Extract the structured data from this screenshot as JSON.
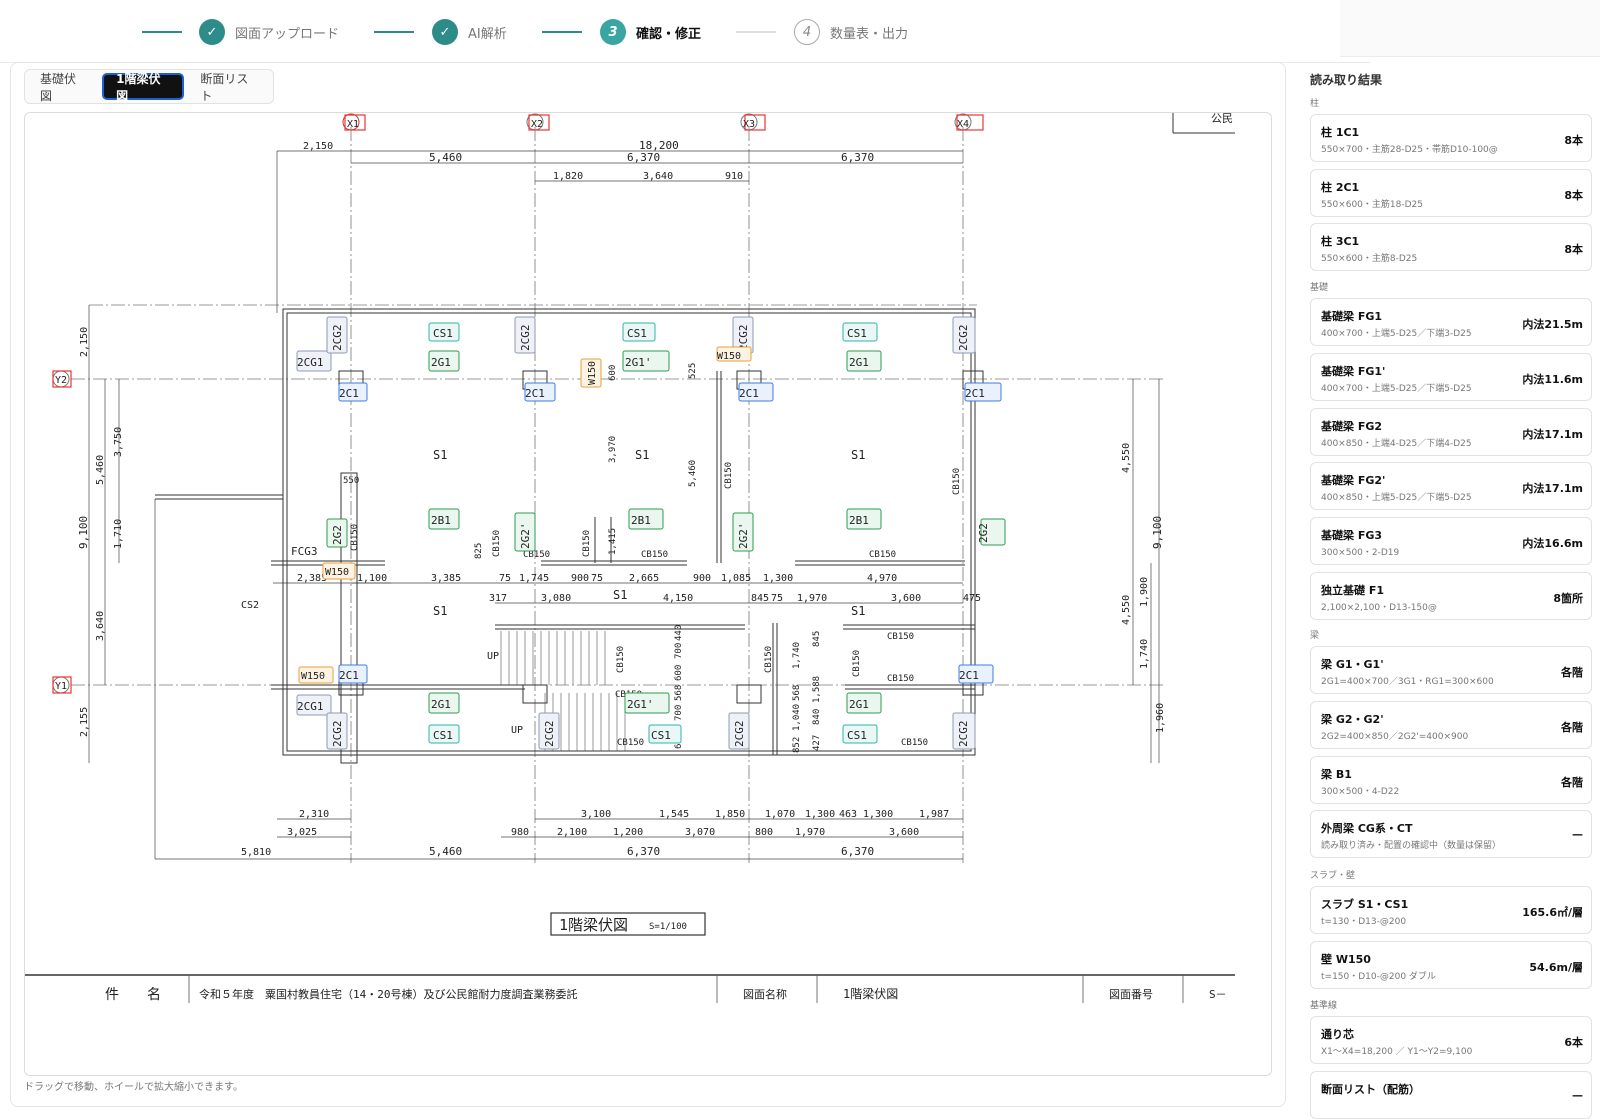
{
  "stepper": {
    "steps": [
      {
        "label": "図面アップロード",
        "mark": "✓"
      },
      {
        "label": "AI解析",
        "mark": "✓"
      },
      {
        "label": "確認・修正",
        "mark": "3"
      },
      {
        "label": "数量表・出力",
        "mark": "4"
      }
    ]
  },
  "tabs": [
    "基礎伏図",
    "1階梁伏図",
    "断面リスト"
  ],
  "hint": "ドラッグで移動、ホイールで拡大縮小できます。",
  "drawing": {
    "grid_x": [
      "X1",
      "X2",
      "X3",
      "X4"
    ],
    "grid_y": [
      "Y2",
      "Y1"
    ],
    "top_right": "公民",
    "dims_top": [
      "2,150",
      "18,200",
      "5,460",
      "6,370",
      "6,370",
      "1,820",
      "3,640",
      "910"
    ],
    "dims_bottom": [
      "2,310",
      "3,025",
      "5,810",
      "5,460",
      "980",
      "2,100",
      "3,100",
      "1,200",
      "1,545",
      "6,370",
      "1,850",
      "3,070",
      "800",
      "1,070",
      "1,970",
      "1,300",
      "463",
      "1,300",
      "3,600",
      "1,987",
      "6,370"
    ],
    "dims_mid": [
      "2,385",
      "1,100",
      "3,385",
      "75",
      "1,745",
      "900",
      "75",
      "2,665",
      "900",
      "1,085",
      "1,300",
      "4,970",
      "317",
      "3,080",
      "4,150",
      "845",
      "75",
      "1,970",
      "3,600",
      "475"
    ],
    "dims_left": [
      "2,150",
      "5,460",
      "3,750",
      "9,100",
      "1,710",
      "3,640",
      "2,155"
    ],
    "dims_right": [
      "4,550",
      "9,100",
      "4,550",
      "1,900",
      "1,740",
      "1,960"
    ],
    "labels": [
      "S1",
      "S1",
      "S1",
      "S1",
      "S1",
      "S1",
      "FCG3",
      "CS2",
      "UP",
      "UP",
      "550",
      "600",
      "525",
      "825",
      "3,970",
      "5,460",
      "1,415",
      "700",
      "440",
      "568",
      "600",
      "700",
      "692",
      "1,740",
      "1,588",
      "845",
      "568",
      "1,040",
      "852",
      "840",
      "427"
    ],
    "cb150": "CB150",
    "tags_cs1": "CS1",
    "tags_2g1": "2G1",
    "tags_2g1p": "2G1'",
    "tags_2b1": "2B1",
    "tags_2c1": "2C1",
    "tags_2cg1": "2CG1",
    "tags_2cg2": "2CG2",
    "tags_2g2": "2G2",
    "tags_2g2p": "2G2'",
    "tags_w150": "W150",
    "title": "1階梁伏図",
    "scale": "S=1/100",
    "titleblock": {
      "label": "件　　名",
      "project": "令和５年度　粟国村教員住宅（14・20号棟）及び公民館耐力度調査業務委託",
      "name_label": "図面名称",
      "name": "1階梁伏図",
      "num_label": "図面番号",
      "num": "S－"
    }
  },
  "sidebar": {
    "title": "読み取り結果",
    "sections": [
      {
        "heading": "柱",
        "items": [
          {
            "name": "柱 1C1",
            "spec": "550×700・主筋28-D25・帯筋D10-100@",
            "qty": "8本"
          },
          {
            "name": "柱 2C1",
            "spec": "550×600・主筋18-D25",
            "qty": "8本"
          },
          {
            "name": "柱 3C1",
            "spec": "550×600・主筋8-D25",
            "qty": "8本"
          }
        ]
      },
      {
        "heading": "基礎",
        "items": [
          {
            "name": "基礎梁 FG1",
            "spec": "400×700・上端5-D25／下端3-D25",
            "qty": "内法21.5m"
          },
          {
            "name": "基礎梁 FG1'",
            "spec": "400×700・上端5-D25／下端5-D25",
            "qty": "内法11.6m"
          },
          {
            "name": "基礎梁 FG2",
            "spec": "400×850・上端4-D25／下端4-D25",
            "qty": "内法17.1m"
          },
          {
            "name": "基礎梁 FG2'",
            "spec": "400×850・上端5-D25／下端5-D25",
            "qty": "内法17.1m"
          },
          {
            "name": "基礎梁 FG3",
            "spec": "300×500・2-D19",
            "qty": "内法16.6m"
          },
          {
            "name": "独立基礎 F1",
            "spec": "2,100×2,100・D13-150@",
            "qty": "8箇所"
          }
        ]
      },
      {
        "heading": "梁",
        "items": [
          {
            "name": "梁 G1・G1'",
            "spec": "2G1=400×700／3G1・RG1=300×600",
            "qty": "各階"
          },
          {
            "name": "梁 G2・G2'",
            "spec": "2G2=400×850／2G2'=400×900",
            "qty": "各階"
          },
          {
            "name": "梁 B1",
            "spec": "300×500・4-D22",
            "qty": "各階"
          },
          {
            "name": "外周梁 CG系・CT",
            "spec": "読み取り済み・配置の確認中（数量は保留）",
            "qty": "—"
          }
        ]
      },
      {
        "heading": "スラブ・壁",
        "items": [
          {
            "name": "スラブ S1・CS1",
            "spec": "t=130・D13-@200",
            "qty": "165.6㎡/層"
          },
          {
            "name": "壁 W150",
            "spec": "t=150・D10-@200 ダブル",
            "qty": "54.6m/層"
          }
        ]
      },
      {
        "heading": "基準線",
        "items": [
          {
            "name": "通り芯",
            "spec": "X1〜X4=18,200 ／ Y1〜Y2=9,100",
            "qty": "6本"
          },
          {
            "name": "断面リスト（配筋）",
            "spec": "",
            "qty": "—"
          }
        ]
      }
    ]
  }
}
